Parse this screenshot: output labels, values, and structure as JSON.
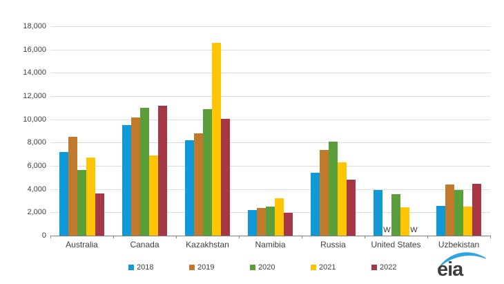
{
  "chart_data": {
    "type": "bar",
    "categories": [
      "Australia",
      "Canada",
      "Kazakhstan",
      "Namibia",
      "Russia",
      "United States",
      "Uzbekistan"
    ],
    "series": [
      {
        "name": "2018",
        "color": "#0F9AD7",
        "values": [
          7200,
          9500,
          8200,
          2200,
          5400,
          3900,
          2550
        ]
      },
      {
        "name": "2019",
        "color": "#C17A2B",
        "values": [
          8500,
          10150,
          8800,
          2400,
          7350,
          null,
          4400
        ]
      },
      {
        "name": "2020",
        "color": "#5A9E39",
        "values": [
          5650,
          11000,
          10900,
          2500,
          8100,
          3550,
          3900
        ]
      },
      {
        "name": "2021",
        "color": "#FFC404",
        "values": [
          6700,
          6900,
          16600,
          3200,
          6300,
          2450,
          2500
        ]
      },
      {
        "name": "2022",
        "color": "#A53844",
        "values": [
          3650,
          11150,
          10050,
          1950,
          4800,
          null,
          4450
        ]
      }
    ],
    "withheld_marker": "W",
    "title": "",
    "xlabel": "",
    "ylabel": "",
    "ylim": [
      0,
      18000
    ],
    "y_ticks": [
      0,
      2000,
      4000,
      6000,
      8000,
      10000,
      12000,
      14000,
      16000,
      18000
    ],
    "y_tick_labels": [
      "0",
      "2,000",
      "4,000",
      "6,000",
      "8,000",
      "10,000",
      "12,000",
      "14,000",
      "16,000",
      "18,000"
    ],
    "grid": true,
    "legend_position": "bottom"
  },
  "logo": {
    "text": "eia",
    "swoosh_color": "#2BA6DE"
  }
}
